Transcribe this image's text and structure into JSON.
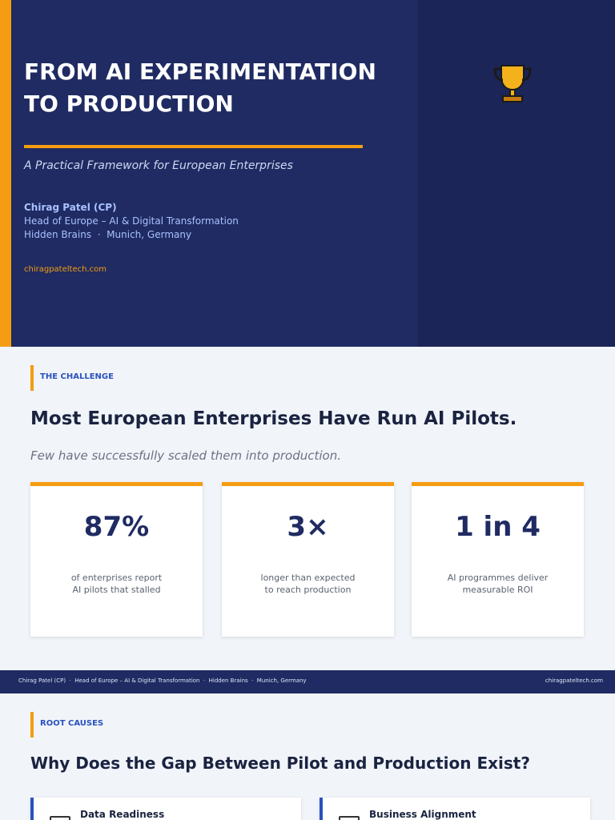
{
  "hero": {
    "title_lines": [
      "FROM AI EXPERIMENTATION",
      "TO PRODUCTION"
    ],
    "subtitle": "A Practical Framework for European Enterprises",
    "author": "Chirag Patel (CP)",
    "role": "Head of Europe – AI & Digital Transformation",
    "company": "Hidden Brains  ·  Munich, Germany",
    "website": "chiragpateltech.com"
  },
  "challenge": {
    "label": "THE CHALLENGE",
    "heading": "Most European Enterprises Have Run AI Pilots.",
    "subheading": "Few have successfully scaled them into production.",
    "stats": [
      {
        "value": "87%",
        "lines": [
          "of enterprises report",
          "AI pilots that stalled"
        ]
      },
      {
        "value": "3×",
        "lines": [
          "longer than expected",
          "to reach production"
        ]
      },
      {
        "value": "1 in 4",
        "lines": [
          "AI programmes deliver",
          "measurable ROI"
        ]
      }
    ]
  },
  "footer": {
    "text": "Chirag Patel (CP)  ·  Head of Europe – AI & Digital Transformation  ·  Hidden Brains  ·  Munich, Germany",
    "website": "chiragpateltech.com"
  },
  "root_causes": {
    "label": "ROOT CAUSES",
    "heading": "Why Does the Gap Between Pilot and Production Exist?",
    "cards": [
      "Data Readiness",
      "Business Alignment"
    ]
  }
}
